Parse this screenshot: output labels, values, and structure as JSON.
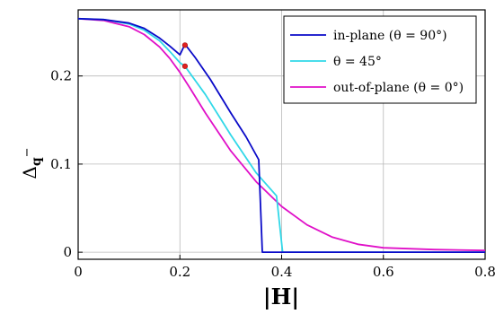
{
  "chart_data": {
    "type": "line",
    "xlabel": "|H|",
    "ylabel_main": "Δ",
    "ylabel_sub": "q",
    "ylabel_sup": "−",
    "xlim": [
      0,
      0.8
    ],
    "ylim": [
      -0.008,
      0.275
    ],
    "x_ticks": [
      0,
      0.2,
      0.4,
      0.6,
      0.8
    ],
    "x_tick_labels": [
      "0",
      "0.2",
      "0.4",
      "0.6",
      "0.8"
    ],
    "y_ticks": [
      0,
      0.1,
      0.2
    ],
    "y_tick_labels": [
      "0",
      "0.1",
      "0.2"
    ],
    "grid": true,
    "legend_position": "top-right",
    "series": [
      {
        "name": "in-plane (θ = 90°)",
        "color": "#0a0ac8",
        "points": [
          [
            0,
            0.265
          ],
          [
            0.05,
            0.264
          ],
          [
            0.1,
            0.26
          ],
          [
            0.13,
            0.254
          ],
          [
            0.16,
            0.243
          ],
          [
            0.18,
            0.234
          ],
          [
            0.2,
            0.224
          ],
          [
            0.21,
            0.236
          ],
          [
            0.23,
            0.221
          ],
          [
            0.26,
            0.196
          ],
          [
            0.3,
            0.158
          ],
          [
            0.33,
            0.131
          ],
          [
            0.355,
            0.105
          ],
          [
            0.362,
            0
          ],
          [
            0.8,
            0
          ]
        ]
      },
      {
        "name": "θ = 45°",
        "color": "#30d8e8",
        "points": [
          [
            0,
            0.265
          ],
          [
            0.05,
            0.264
          ],
          [
            0.1,
            0.259
          ],
          [
            0.13,
            0.252
          ],
          [
            0.16,
            0.24
          ],
          [
            0.18,
            0.228
          ],
          [
            0.2,
            0.215
          ],
          [
            0.21,
            0.211
          ],
          [
            0.25,
            0.179
          ],
          [
            0.3,
            0.133
          ],
          [
            0.35,
            0.09
          ],
          [
            0.39,
            0.064
          ],
          [
            0.402,
            0
          ],
          [
            0.8,
            0
          ]
        ]
      },
      {
        "name": "out-of-plane (θ = 0°)",
        "color": "#e010c8",
        "points": [
          [
            0,
            0.265
          ],
          [
            0.05,
            0.263
          ],
          [
            0.1,
            0.256
          ],
          [
            0.13,
            0.247
          ],
          [
            0.16,
            0.233
          ],
          [
            0.18,
            0.22
          ],
          [
            0.2,
            0.204
          ],
          [
            0.22,
            0.186
          ],
          [
            0.25,
            0.158
          ],
          [
            0.3,
            0.115
          ],
          [
            0.35,
            0.08
          ],
          [
            0.4,
            0.052
          ],
          [
            0.45,
            0.031
          ],
          [
            0.5,
            0.017
          ],
          [
            0.55,
            0.009
          ],
          [
            0.6,
            0.005
          ],
          [
            0.7,
            0.003
          ],
          [
            0.8,
            0.002
          ]
        ]
      }
    ],
    "markers": [
      {
        "x": 0.21,
        "y": 0.235,
        "color": "#e02020"
      },
      {
        "x": 0.21,
        "y": 0.211,
        "color": "#e02020"
      }
    ]
  }
}
